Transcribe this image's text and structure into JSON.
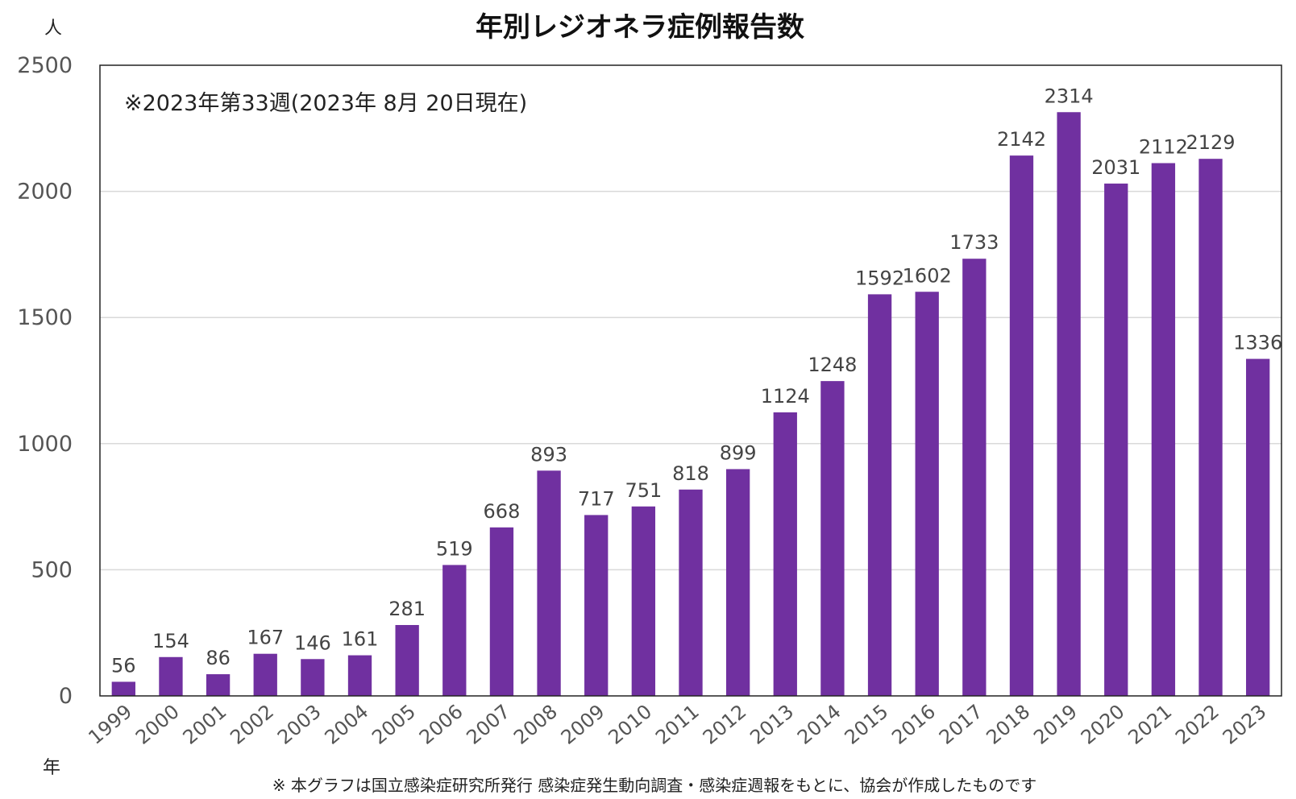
{
  "chart_data": {
    "type": "bar",
    "title": "年別レジオネラ症例報告数",
    "ylabel": "人",
    "xlabel": "年",
    "note": "※2023年第33週(2023年 8月 20日現在)",
    "source": "※ 本グラフは国立感染症研究所発行 感染症発生動向調査・感染症週報をもとに、協会が作成したものです",
    "categories": [
      "1999",
      "2000",
      "2001",
      "2002",
      "2003",
      "2004",
      "2005",
      "2006",
      "2007",
      "2008",
      "2009",
      "2010",
      "2011",
      "2012",
      "2013",
      "2014",
      "2015",
      "2016",
      "2017",
      "2018",
      "2019",
      "2020",
      "2021",
      "2022",
      "2023"
    ],
    "values": [
      56,
      154,
      86,
      167,
      146,
      161,
      281,
      519,
      668,
      893,
      717,
      751,
      818,
      899,
      1124,
      1248,
      1592,
      1602,
      1733,
      2142,
      2314,
      2031,
      2112,
      2129,
      1336
    ],
    "ylim": [
      0,
      2500
    ],
    "yticks": [
      0,
      500,
      1000,
      1500,
      2000,
      2500
    ],
    "grid": true,
    "bar_color": "#7030a0"
  }
}
